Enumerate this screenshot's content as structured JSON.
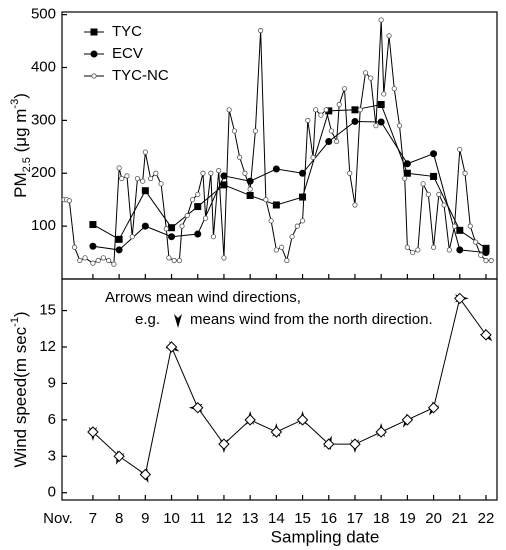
{
  "chart_data": [
    {
      "type": "line",
      "ylabel": {
        "main": "PM",
        "sub": "2.5",
        "rest": " (μg m",
        "sup": "-3",
        "end": ")"
      },
      "xlim": [
        5.82,
        22.42
      ],
      "ylim": [
        0,
        505
      ],
      "yticks": [
        100,
        200,
        300,
        400,
        500
      ],
      "xticks": [
        7,
        8,
        9,
        10,
        11,
        12,
        13,
        14,
        15,
        16,
        17,
        18,
        19,
        20,
        21,
        22
      ],
      "legend": "top-left",
      "series": [
        {
          "name": "TYC",
          "color": "#000000",
          "marker": "square",
          "x": [
            7,
            8,
            9,
            10,
            11,
            12,
            13,
            14,
            15,
            16,
            17,
            18,
            19,
            20,
            21,
            22
          ],
          "values": [
            103,
            75,
            167,
            97,
            137,
            178,
            158,
            140,
            155,
            318,
            320,
            330,
            200,
            194,
            92,
            58
          ]
        },
        {
          "name": "ECV",
          "color": "#000000",
          "marker": "circle",
          "x": [
            7,
            8,
            9,
            10,
            11,
            12,
            13,
            14,
            15,
            16,
            17,
            18,
            19,
            20,
            21,
            22
          ],
          "values": [
            62,
            55,
            100,
            80,
            85,
            195,
            185,
            208,
            200,
            260,
            298,
            297,
            218,
            237,
            55,
            50
          ]
        },
        {
          "name": "TYC-NC",
          "color": "#000000",
          "marker": "open-circle",
          "x": [
            5.9,
            6.0,
            6.1,
            6.3,
            6.5,
            6.7,
            7.0,
            7.2,
            7.4,
            7.6,
            7.8,
            8.0,
            8.1,
            8.3,
            8.5,
            8.7,
            8.9,
            9.0,
            9.2,
            9.4,
            9.6,
            9.8,
            9.9,
            10.1,
            10.3,
            10.4,
            10.6,
            10.8,
            11.0,
            11.2,
            11.3,
            11.5,
            11.6,
            11.8,
            12.0,
            12.2,
            12.4,
            12.6,
            12.8,
            13.0,
            13.2,
            13.4,
            13.6,
            13.8,
            14.0,
            14.2,
            14.4,
            14.6,
            14.8,
            15.0,
            15.2,
            15.4,
            15.5,
            15.7,
            15.9,
            16.1,
            16.3,
            16.4,
            16.6,
            16.8,
            17.0,
            17.2,
            17.4,
            17.6,
            17.8,
            18.0,
            18.1,
            18.3,
            18.5,
            18.7,
            18.9,
            19.0,
            19.2,
            19.4,
            19.6,
            19.8,
            20.0,
            20.2,
            20.4,
            20.6,
            20.8,
            21.0,
            21.2,
            21.4,
            21.6,
            21.8,
            22.0,
            22.2
          ],
          "values": [
            150,
            150,
            148,
            60,
            35,
            40,
            30,
            35,
            40,
            35,
            28,
            210,
            190,
            195,
            80,
            190,
            185,
            240,
            190,
            200,
            180,
            95,
            40,
            35,
            35,
            100,
            120,
            150,
            160,
            200,
            115,
            200,
            80,
            205,
            40,
            320,
            280,
            230,
            200,
            170,
            280,
            470,
            150,
            110,
            55,
            60,
            35,
            80,
            100,
            110,
            300,
            230,
            320,
            310,
            320,
            280,
            260,
            330,
            360,
            200,
            140,
            320,
            390,
            380,
            290,
            490,
            350,
            460,
            360,
            290,
            190,
            60,
            50,
            55,
            180,
            160,
            60,
            160,
            140,
            55,
            100,
            245,
            200,
            100,
            70,
            45,
            35,
            35
          ]
        }
      ]
    },
    {
      "type": "wind",
      "ylabel": {
        "main": "Wind speed(m sec",
        "sup": "-1",
        "end": ")"
      },
      "xlabel": "Sampling date",
      "xprefix": "Nov.",
      "annotation": [
        "Arrows mean wind directions,",
        "e.g.",
        "means wind from the north direction."
      ],
      "xlim": [
        5.82,
        22.42
      ],
      "ylim": [
        -0.6,
        17.6
      ],
      "yticks": [
        0,
        3,
        6,
        9,
        12,
        15
      ],
      "xticks": [
        7,
        8,
        9,
        10,
        11,
        12,
        13,
        14,
        15,
        16,
        17,
        18,
        19,
        20,
        21,
        22
      ],
      "x": [
        7,
        8,
        9,
        10,
        11,
        12,
        13,
        14,
        15,
        16,
        17,
        18,
        19,
        20,
        21,
        22
      ],
      "values": [
        5,
        3,
        1.5,
        12,
        7,
        4,
        6,
        5,
        6,
        4,
        4,
        5,
        6,
        7,
        16,
        13
      ],
      "directions": [
        0,
        20,
        340,
        300,
        90,
        0,
        180,
        180,
        180,
        200,
        0,
        180,
        30,
        30,
        270,
        315
      ],
      "color": "#000000"
    }
  ]
}
